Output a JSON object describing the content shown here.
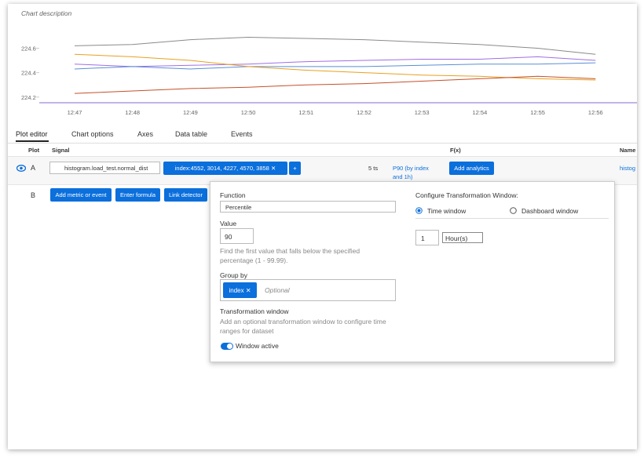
{
  "chart": {
    "type": "line",
    "title": "Chart description",
    "x": [
      "12:47",
      "12:48",
      "12:49",
      "12:50",
      "12:51",
      "12:52",
      "12:53",
      "12:54",
      "12:55",
      "12:56"
    ],
    "ylim": [
      224.16,
      224.77
    ],
    "yticks": [
      224.6,
      224.4,
      224.2
    ],
    "series": [
      {
        "color": "#8a8a8a",
        "values": [
          224.62,
          224.63,
          224.67,
          224.69,
          224.68,
          224.67,
          224.65,
          224.63,
          224.6,
          224.55
        ]
      },
      {
        "color": "#a06ee6",
        "values": [
          224.47,
          224.45,
          224.46,
          224.47,
          224.49,
          224.5,
          224.51,
          224.51,
          224.53,
          224.5
        ]
      },
      {
        "color": "#5a8fd4",
        "values": [
          224.43,
          224.45,
          224.43,
          224.45,
          224.45,
          224.45,
          224.46,
          224.47,
          224.47,
          224.48
        ]
      },
      {
        "color": "#e8a020",
        "values": [
          224.55,
          224.53,
          224.5,
          224.45,
          224.42,
          224.4,
          224.38,
          224.37,
          224.35,
          224.34
        ]
      },
      {
        "color": "#c4502a",
        "values": [
          224.23,
          224.25,
          224.27,
          224.28,
          224.3,
          224.31,
          224.33,
          224.35,
          224.37,
          224.35
        ]
      }
    ]
  },
  "tabs": [
    "Plot editor",
    "Chart options",
    "Axes",
    "Data table",
    "Events"
  ],
  "table": {
    "headers": [
      "Plot",
      "Signal",
      "F(x)",
      "Name"
    ],
    "row_a": {
      "label": "A",
      "signal": "histogram.load_test.normal_dist",
      "filter": "index:4552, 3014, 4227, 4570, 3858",
      "add": "+",
      "resolution": "5 ts",
      "function": "P90 (by index and 1h)",
      "analytics": "Add analytics",
      "name": "histog"
    },
    "row_b": {
      "label": "B",
      "buttons": [
        "Add metric or event",
        "Enter formula",
        "Link detector"
      ]
    }
  },
  "popup": {
    "function_label": "Function",
    "function_value": "Percentile",
    "value_label": "Value",
    "value": "90",
    "value_help": "Find the first value that falls below the specified percentage (1 - 99.99).",
    "group_label": "Group by",
    "group_tag": "index",
    "group_placeholder": "Optional",
    "tw_title": "Transformation window",
    "tw_help": "Add an optional transformation window to configure time ranges for dataset",
    "toggle": "Window active",
    "configure_title": "Configure Transformation Window:",
    "radio1": "Time window",
    "radio2": "Dashboard window",
    "window_value": "1",
    "window_unit": "Hour(s)"
  }
}
